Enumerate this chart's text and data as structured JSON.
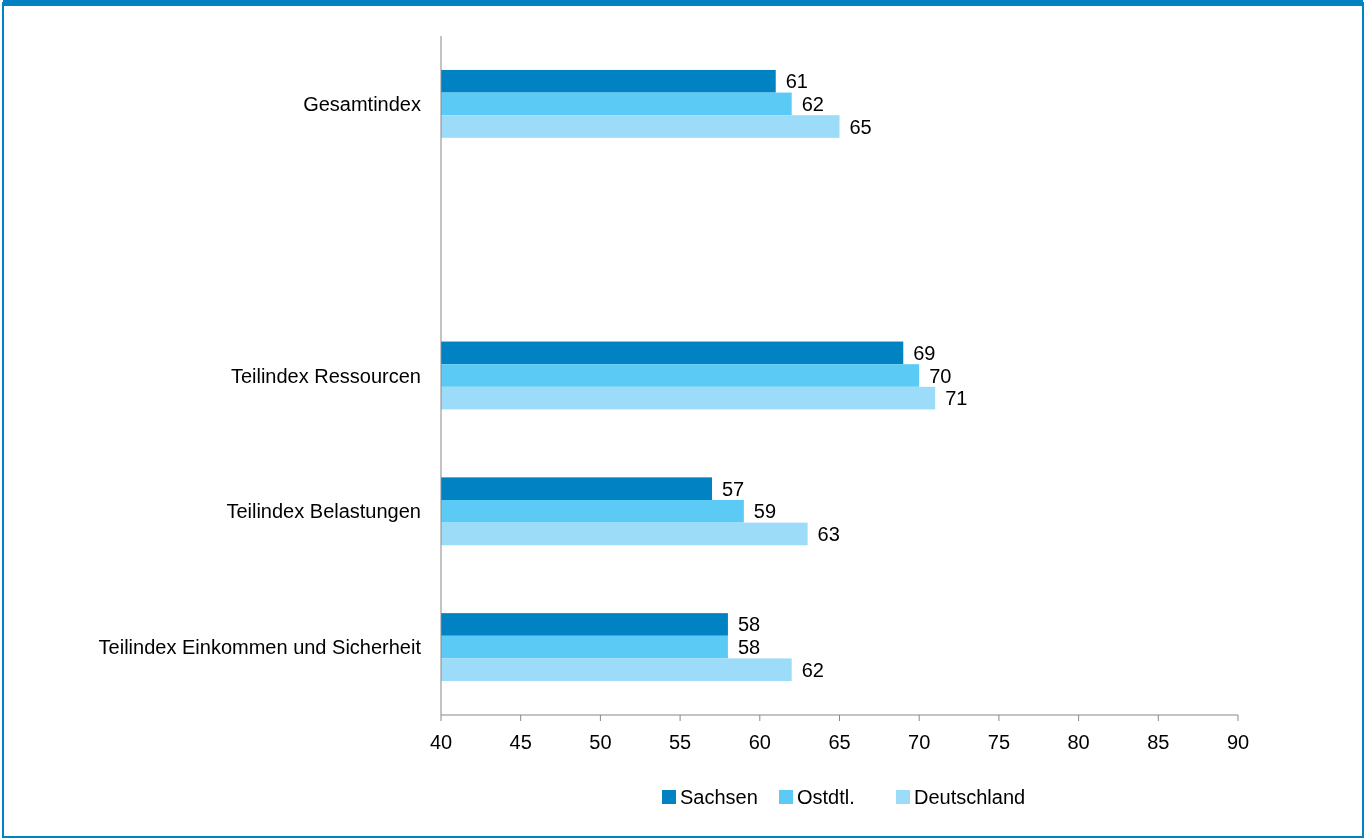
{
  "chart_data": {
    "type": "bar",
    "orientation": "horizontal",
    "categories": [
      "Gesamtindex",
      null,
      "Teilindex Ressourcen",
      "Teilindex Belastungen",
      "Teilindex Einkommen und Sicherheit"
    ],
    "series": [
      {
        "name": "Sachsen",
        "color": "#0082c3",
        "values": [
          61,
          null,
          69,
          57,
          58
        ]
      },
      {
        "name": "Ostdtl.",
        "color": "#5bcbf5",
        "values": [
          62,
          null,
          70,
          59,
          58
        ]
      },
      {
        "name": "Deutschland",
        "color": "#9ddcf9",
        "values": [
          65,
          null,
          71,
          63,
          62
        ]
      }
    ],
    "xlim": [
      40,
      90
    ],
    "xticks": [
      40,
      45,
      50,
      55,
      60,
      65,
      70,
      75,
      80,
      85,
      90
    ],
    "data_labels": true,
    "grid": false,
    "legend": "bottom"
  }
}
